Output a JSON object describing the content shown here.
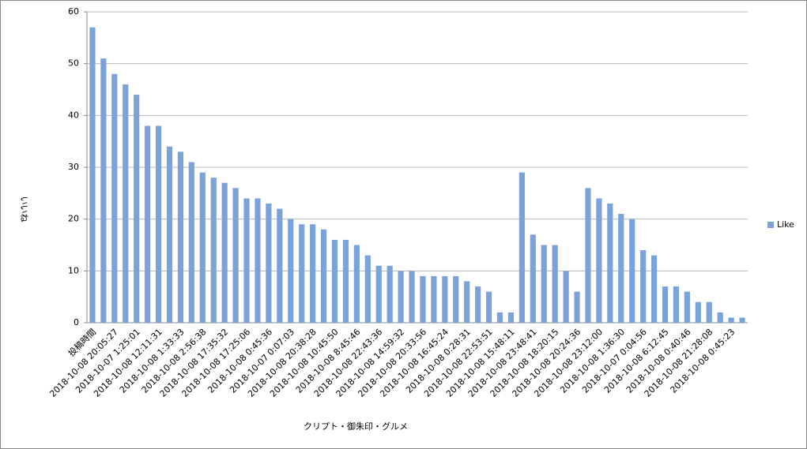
{
  "chart_data": {
    "type": "bar",
    "x_label": "クリプト・御朱印・グルメ",
    "y_label": "いいね",
    "categories": [
      "投稿時間",
      null,
      "2018-10-08 20:05:27",
      null,
      "2018-10-07 1:25:01",
      null,
      "2018-10-08 12:11:31",
      null,
      "2018-10-08 1:33:33",
      null,
      "2018-10-08 2:56:38",
      null,
      "2018-10-08 17:35:32",
      null,
      "2018-10-08 17:25:06",
      null,
      "2018-10-08 0:45:36",
      null,
      "2018-10-07 0:07:03",
      null,
      "2018-10-08 20:38:28",
      null,
      "2018-10-08 10:45:50",
      null,
      "2018-10-08 8:45:46",
      null,
      "2018-10-08 22:43:36",
      null,
      "2018-10-08 14:59:32",
      null,
      "2018-10-08 20:33:56",
      null,
      "2018-10-08 16:45:24",
      null,
      "2018-10-08 0:28:31",
      null,
      "2018-10-08 22:53:51",
      null,
      "2018-10-08 15:48:11",
      null,
      "2018-10-08 23:48:41",
      null,
      "2018-10-08 18:20:15",
      null,
      "2018-10-08 20:24:36",
      null,
      "2018-10-08 23:12:00",
      null,
      "2018-10-08 1:36:30",
      null,
      "2018-10-07 0:04:56",
      null,
      "2018-10-08 6:12:45",
      null,
      "2018-10-08 0:40:46",
      null,
      "2018-10-08 21:28:08",
      null,
      "2018-10-08 0:45:23",
      null
    ],
    "series": [
      {
        "name": "Like",
        "color": "#7ba3da",
        "values": [
          57,
          51,
          48,
          46,
          44,
          38,
          38,
          34,
          33,
          31,
          29,
          28,
          27,
          26,
          24,
          24,
          23,
          22,
          20,
          19,
          19,
          18,
          16,
          16,
          15,
          13,
          11,
          11,
          10,
          10,
          9,
          9,
          9,
          9,
          8,
          7,
          6,
          2,
          2,
          29,
          17,
          15,
          15,
          10,
          6,
          26,
          24,
          23,
          21,
          20,
          14,
          13,
          7,
          7,
          6,
          4,
          4,
          2,
          1,
          1
        ]
      }
    ],
    "ylim": [
      0,
      60
    ],
    "yticks": [
      0,
      10,
      20,
      30,
      40,
      50,
      60
    ],
    "grid": true,
    "legend": "right"
  }
}
